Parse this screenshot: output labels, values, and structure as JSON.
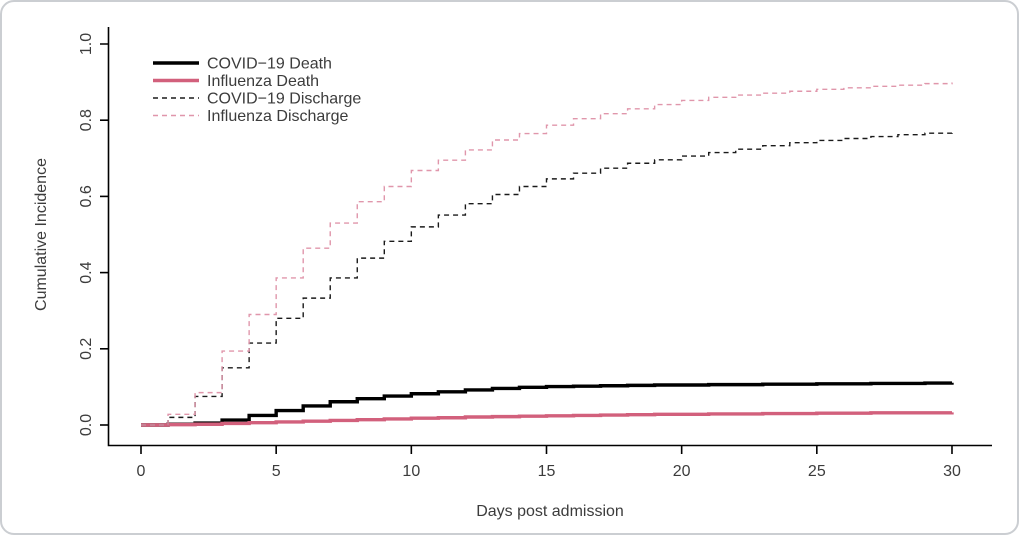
{
  "colors": {
    "axis": "#000000",
    "text": "#3c3c3c",
    "border": "#cbced2",
    "background": "#ffffff",
    "covid_black": "#000000",
    "influenza_pink_solid": "#d2607c",
    "influenza_pink_dashed": "#e096ab"
  },
  "chart_data": {
    "type": "line",
    "subtype": "step",
    "title": "",
    "xlabel": "Days post admission",
    "ylabel": "Cumulative Incidence",
    "xlim": [
      0,
      30
    ],
    "ylim": [
      0.0,
      1.0
    ],
    "grid": false,
    "legend_position": "top-left",
    "xticks": [
      "0",
      "5",
      "10",
      "15",
      "20",
      "25",
      "30"
    ],
    "yticks": [
      "0.0",
      "0.2",
      "0.4",
      "0.6",
      "0.8",
      "1.0"
    ],
    "x": [
      0,
      1,
      2,
      3,
      4,
      5,
      6,
      7,
      8,
      9,
      10,
      11,
      12,
      13,
      14,
      15,
      16,
      17,
      18,
      19,
      20,
      21,
      22,
      23,
      24,
      25,
      26,
      27,
      28,
      29,
      30
    ],
    "series": [
      {
        "name": "COVID−19 Death",
        "color": "#000000",
        "dash": "solid",
        "width": 3.4,
        "values": [
          0.0,
          0.002,
          0.005,
          0.013,
          0.025,
          0.038,
          0.05,
          0.061,
          0.069,
          0.076,
          0.082,
          0.087,
          0.092,
          0.096,
          0.099,
          0.101,
          0.102,
          0.103,
          0.104,
          0.105,
          0.105,
          0.106,
          0.106,
          0.107,
          0.107,
          0.108,
          0.108,
          0.109,
          0.109,
          0.11,
          0.111
        ]
      },
      {
        "name": "Influenza Death",
        "color": "#d2607c",
        "dash": "solid",
        "width": 3.4,
        "values": [
          0.0,
          0.001,
          0.002,
          0.004,
          0.006,
          0.008,
          0.01,
          0.012,
          0.014,
          0.016,
          0.018,
          0.019,
          0.021,
          0.022,
          0.023,
          0.024,
          0.025,
          0.026,
          0.027,
          0.028,
          0.028,
          0.029,
          0.029,
          0.03,
          0.03,
          0.031,
          0.031,
          0.032,
          0.032,
          0.032,
          0.033
        ]
      },
      {
        "name": "COVID−19 Discharge",
        "color": "#1a1a1a",
        "dash": "dashed",
        "width": 1.4,
        "values": [
          0.0,
          0.02,
          0.075,
          0.15,
          0.215,
          0.28,
          0.333,
          0.386,
          0.438,
          0.482,
          0.52,
          0.551,
          0.581,
          0.605,
          0.626,
          0.646,
          0.661,
          0.674,
          0.687,
          0.696,
          0.706,
          0.715,
          0.724,
          0.733,
          0.741,
          0.747,
          0.752,
          0.757,
          0.762,
          0.766,
          0.77
        ]
      },
      {
        "name": "Influenza Discharge",
        "color": "#e096ab",
        "dash": "dashed",
        "width": 1.4,
        "values": [
          0.0,
          0.028,
          0.085,
          0.194,
          0.29,
          0.386,
          0.464,
          0.53,
          0.586,
          0.626,
          0.668,
          0.695,
          0.722,
          0.748,
          0.765,
          0.787,
          0.804,
          0.817,
          0.83,
          0.841,
          0.852,
          0.86,
          0.866,
          0.871,
          0.876,
          0.881,
          0.885,
          0.889,
          0.892,
          0.896,
          0.899
        ]
      }
    ]
  }
}
